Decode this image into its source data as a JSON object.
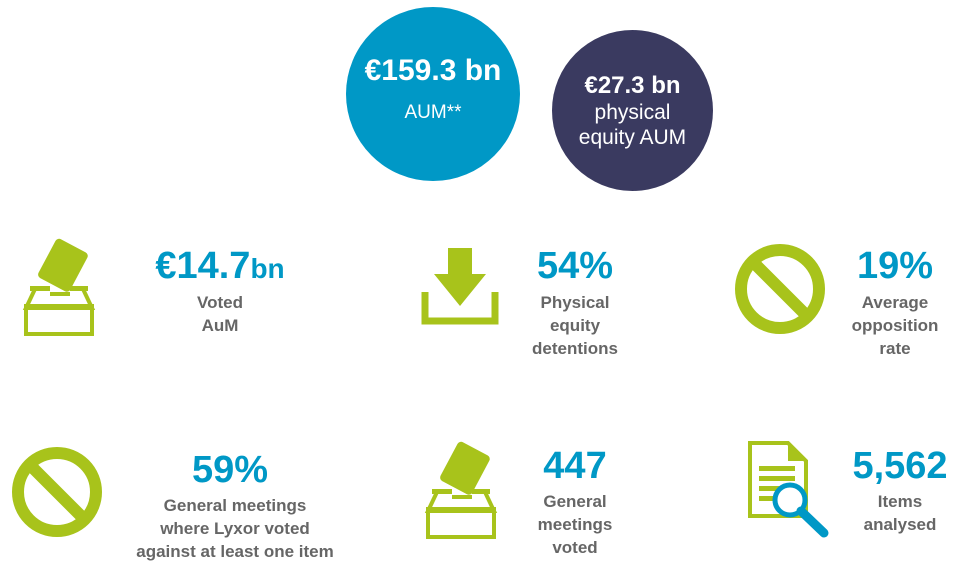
{
  "colors": {
    "blue": "#0098c6",
    "navy": "#3a3a60",
    "green": "#a8c31b",
    "grey": "#666666"
  },
  "circles": [
    {
      "value": "€159.3 bn",
      "label": "AUM**"
    },
    {
      "value": "€27.3 bn",
      "label": "physical\nequity AUM"
    }
  ],
  "stats": [
    {
      "icon": "ballot-box-icon",
      "value": "€14.7",
      "unit": "bn",
      "label": "Voted\nAuM"
    },
    {
      "icon": "download-icon",
      "value": "54%",
      "label": "Physical\nequity\ndetentions"
    },
    {
      "icon": "prohibited-icon",
      "value": "19%",
      "label": "Average\nopposition\nrate"
    },
    {
      "icon": "prohibited-icon",
      "value": "59%",
      "label": "General meetings\nwhere Lyxor voted\nagainst at least one item"
    },
    {
      "icon": "ballot-box-icon",
      "value": "447",
      "label": "General\nmeetings\nvoted"
    },
    {
      "icon": "document-search-icon",
      "value": "5,562",
      "label": "Items\nanalysed"
    }
  ]
}
